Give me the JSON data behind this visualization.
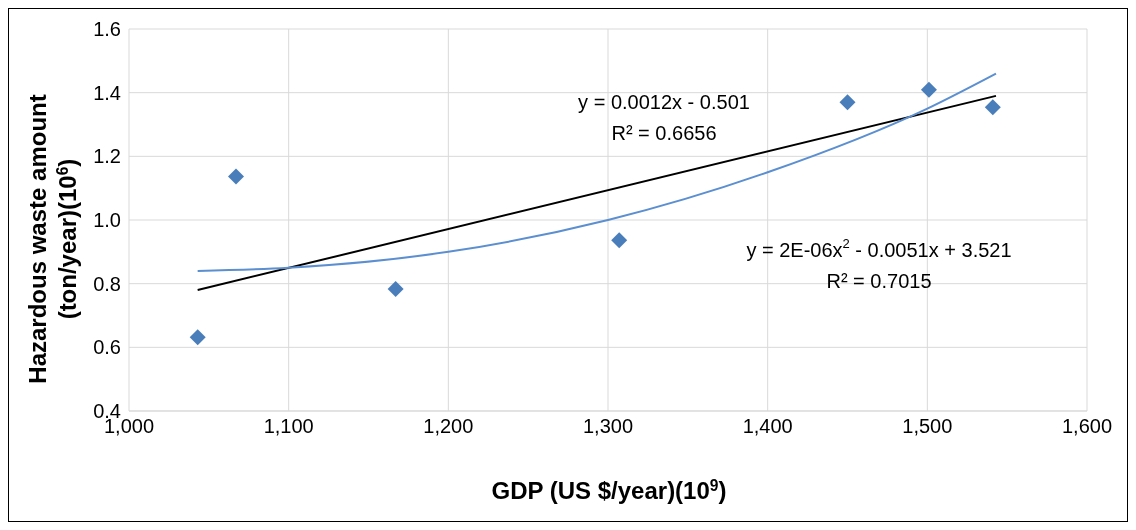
{
  "chart_data": {
    "type": "scatter",
    "xlabel": "GDP (US $/year)(10$^{9}$)",
    "ylabel": "Hazardous waste amount (ton/year)(10$^{6}$)",
    "series": [
      {
        "marker": "diamond",
        "color": "#4a7ebb",
        "x": [
          1043,
          1067,
          1167,
          1307,
          1450,
          1501,
          1541
        ],
        "values": [
          0.632,
          1.137,
          0.783,
          0.936,
          1.37,
          1.409,
          1.354
        ]
      },
      {
        "type": "line",
        "marker": "none",
        "color": "#000000",
        "x": [
          1043,
          1543
        ],
        "values": [
          0.78,
          1.39
        ]
      },
      {
        "type": "line",
        "marker": "none",
        "color": "#5b8fd0",
        "x": [
          1043,
          1100,
          1200,
          1300,
          1400,
          1500,
          1543
        ],
        "values": [
          0.84,
          0.85,
          0.9,
          1.0,
          1.15,
          1.35,
          1.46
        ]
      }
    ],
    "grid": true,
    "legend": false,
    "xlim": [
      1000,
      1600
    ],
    "xticks": [
      {
        "value": 1000,
        "label": "1,000"
      },
      {
        "value": 1100,
        "label": "1,100"
      },
      {
        "value": 1200,
        "label": "1,200"
      },
      {
        "value": 1300,
        "label": "1,300"
      },
      {
        "value": 1400,
        "label": "1,400"
      },
      {
        "value": 1500,
        "label": "1,500"
      },
      {
        "value": 1600,
        "label": "1,600"
      }
    ],
    "ylim": [
      0.4,
      1.6
    ],
    "yticks": [
      {
        "value": 0.4,
        "label": "0.4"
      },
      {
        "value": 0.6,
        "label": "0.6"
      },
      {
        "value": 0.8,
        "label": "0.8"
      },
      {
        "value": 1.0,
        "label": "1.0"
      },
      {
        "value": 1.2,
        "label": "1.2"
      },
      {
        "value": 1.4,
        "label": "1.4"
      },
      {
        "value": 1.6,
        "label": "1.6"
      }
    ],
    "annotations": [
      "y = 0.0012x - 0.501",
      "R² = 0.6656",
      "y = 2E-06x$^{2}$ - 0.0051x + 3.521",
      "R² = 0.7015"
    ]
  }
}
